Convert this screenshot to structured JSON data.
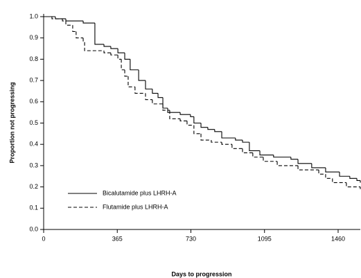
{
  "chart_data": {
    "type": "step",
    "x_label": "Days to progression",
    "y_label": "Proportion not progressing",
    "xlim": [
      0,
      1570
    ],
    "ylim": [
      0,
      1
    ],
    "xticks": [
      0,
      365,
      730,
      1095,
      1460
    ],
    "yticks": [
      {
        "value": 0,
        "label": "0.0"
      },
      0.1,
      0.2,
      0.3,
      0.4,
      0.5,
      0.6,
      0.7,
      0.8,
      0.9,
      {
        "value": 1,
        "label": "1.0"
      }
    ],
    "legend": "lower-left",
    "series": [
      {
        "name": "Bicalutamide plus LHRH-A",
        "color": "#000000",
        "dash": "solid",
        "x": [
          0,
          58,
          110,
          196,
          254,
          299,
          333,
          368,
          402,
          429,
          471,
          505,
          539,
          567,
          591,
          615,
          677,
          728,
          745,
          780,
          814,
          848,
          883,
          951,
          986,
          1020,
          1072,
          1140,
          1226,
          1261,
          1329,
          1398,
          1467,
          1518,
          1553,
          1570
        ],
        "values": [
          1.0,
          0.99,
          0.98,
          0.97,
          0.87,
          0.86,
          0.85,
          0.83,
          0.8,
          0.75,
          0.7,
          0.66,
          0.64,
          0.62,
          0.57,
          0.55,
          0.54,
          0.53,
          0.5,
          0.48,
          0.47,
          0.46,
          0.43,
          0.42,
          0.41,
          0.37,
          0.35,
          0.34,
          0.33,
          0.31,
          0.29,
          0.27,
          0.25,
          0.24,
          0.23,
          0.22
        ]
      },
      {
        "name": "Flutamide plus LHRH-A",
        "color": "#000000",
        "dash": "dashed",
        "x": [
          0,
          41,
          93,
          110,
          144,
          161,
          196,
          203,
          299,
          333,
          368,
          385,
          402,
          419,
          453,
          505,
          539,
          591,
          625,
          677,
          711,
          745,
          780,
          831,
          883,
          934,
          986,
          1037,
          1089,
          1158,
          1261,
          1364,
          1398,
          1432,
          1501,
          1570
        ],
        "values": [
          1.0,
          0.99,
          0.98,
          0.96,
          0.93,
          0.9,
          0.88,
          0.84,
          0.83,
          0.82,
          0.8,
          0.75,
          0.72,
          0.67,
          0.64,
          0.61,
          0.59,
          0.56,
          0.52,
          0.51,
          0.49,
          0.45,
          0.42,
          0.41,
          0.4,
          0.38,
          0.36,
          0.34,
          0.32,
          0.3,
          0.28,
          0.26,
          0.24,
          0.22,
          0.2,
          0.19
        ]
      }
    ]
  }
}
